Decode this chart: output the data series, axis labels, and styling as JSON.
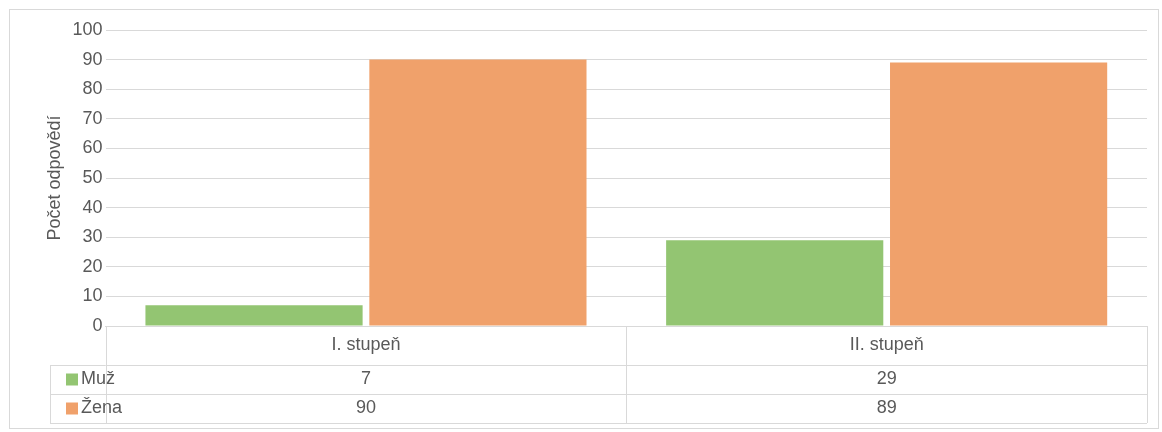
{
  "chart_data": {
    "type": "bar",
    "ylabel": "Počet odpovědí",
    "categories": [
      "I. stupeň",
      "II. stupeň"
    ],
    "series": [
      {
        "name": "Muž",
        "color": "#93c572",
        "values": [
          7,
          29
        ]
      },
      {
        "name": "Žena",
        "color": "#f0a16b",
        "values": [
          90,
          89
        ]
      }
    ],
    "ylim": [
      0,
      100
    ],
    "yticks": [
      0,
      10,
      20,
      30,
      40,
      50,
      60,
      70,
      80,
      90,
      100
    ],
    "grid": "y",
    "legend": "bottom",
    "data_labels": true
  }
}
